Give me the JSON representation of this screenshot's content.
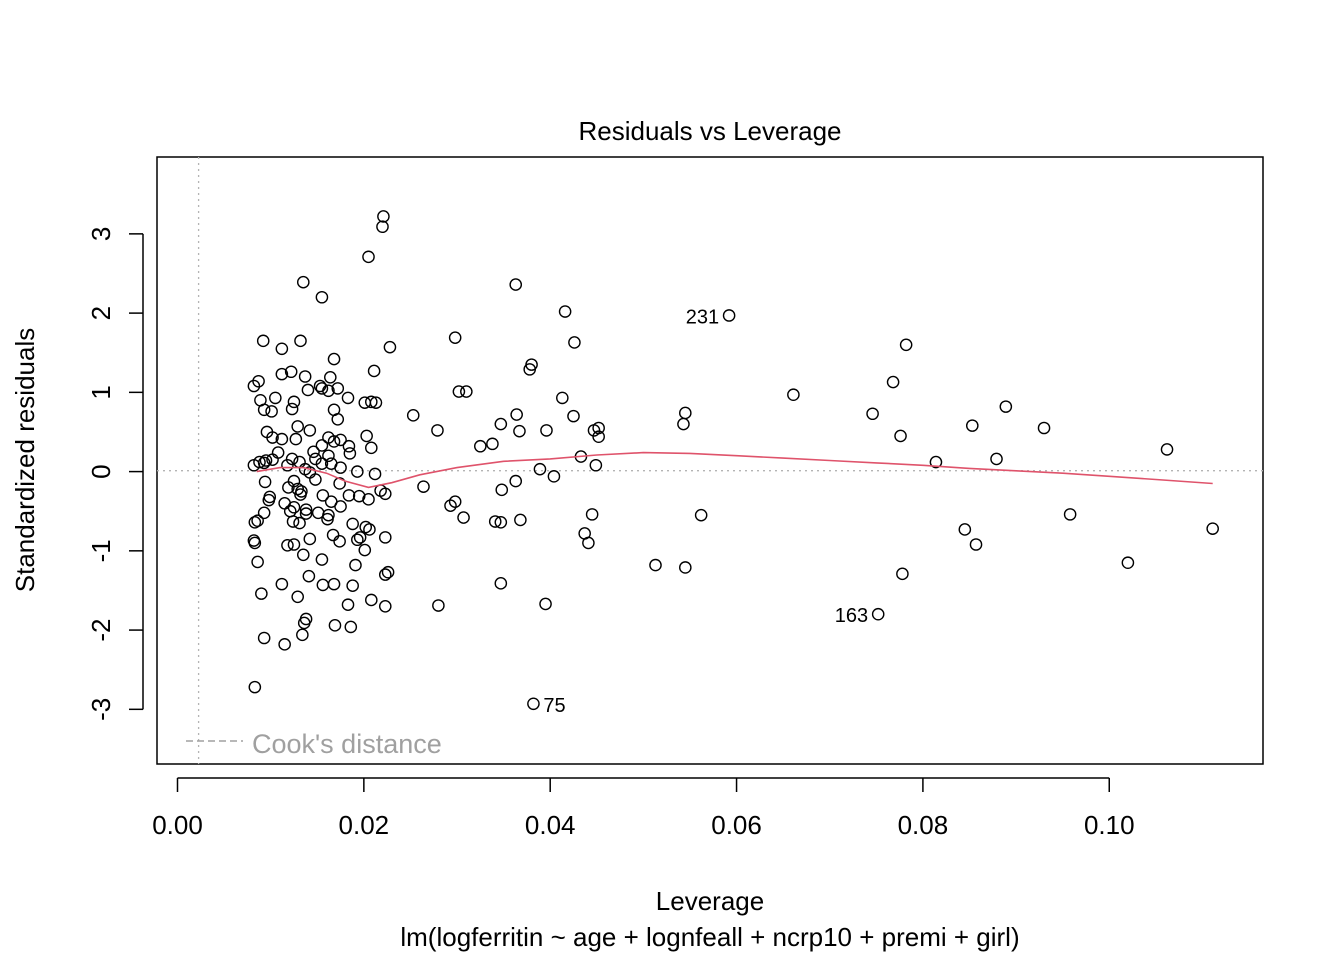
{
  "chart_data": {
    "type": "scatter",
    "title": "Residuals vs Leverage",
    "xlabel": "Leverage",
    "subtitle": "lm(logferritin ~ age + lognfeall + ncrp10 + premi + girl)",
    "ylabel": "Standardized residuals",
    "xlim": [
      -0.0022,
      0.1165
    ],
    "ylim": [
      -3.69,
      3.97
    ],
    "xticks": [
      0.0,
      0.02,
      0.04,
      0.06,
      0.08,
      0.1
    ],
    "xtick_labels": [
      "0.00",
      "0.02",
      "0.04",
      "0.06",
      "0.08",
      "0.10"
    ],
    "yticks": [
      -3,
      -2,
      -1,
      0,
      1,
      2,
      3
    ],
    "ytick_labels": [
      "-3",
      "-2",
      "-1",
      "0",
      "1",
      "2",
      "3"
    ],
    "legend": {
      "label": "Cook's distance",
      "position": "bottom-left",
      "line_style": "dashed",
      "color": "#a0a0a0"
    },
    "reference_lines": {
      "h": 0,
      "v": 0,
      "style": "dotted",
      "color": "#b4b4b4"
    },
    "smoother_color": "#df536b",
    "smoother": [
      [
        0.0085,
        0.0
      ],
      [
        0.011,
        0.05
      ],
      [
        0.0135,
        0.05
      ],
      [
        0.016,
        -0.02
      ],
      [
        0.018,
        -0.12
      ],
      [
        0.0205,
        -0.2
      ],
      [
        0.023,
        -0.14
      ],
      [
        0.026,
        -0.04
      ],
      [
        0.03,
        0.05
      ],
      [
        0.035,
        0.13
      ],
      [
        0.04,
        0.16
      ],
      [
        0.045,
        0.21
      ],
      [
        0.05,
        0.24
      ],
      [
        0.055,
        0.23
      ],
      [
        0.06,
        0.2
      ],
      [
        0.065,
        0.17
      ],
      [
        0.07,
        0.14
      ],
      [
        0.075,
        0.11
      ],
      [
        0.08,
        0.08
      ],
      [
        0.085,
        0.04
      ],
      [
        0.09,
        0.01
      ],
      [
        0.095,
        -0.02
      ],
      [
        0.1,
        -0.06
      ],
      [
        0.105,
        -0.1
      ],
      [
        0.1111,
        -0.15
      ]
    ],
    "labeled_points": [
      {
        "x": 0.0592,
        "y": 1.97,
        "label": "231",
        "side": "left"
      },
      {
        "x": 0.0752,
        "y": -1.8,
        "label": "163",
        "side": "left"
      },
      {
        "x": 0.0382,
        "y": -2.93,
        "label": "75",
        "side": "right"
      }
    ],
    "points": [
      [
        0.0221,
        3.22
      ],
      [
        0.022,
        3.09
      ],
      [
        0.0205,
        2.71
      ],
      [
        0.0135,
        2.39
      ],
      [
        0.0155,
        2.2
      ],
      [
        0.0363,
        2.36
      ],
      [
        0.0416,
        2.02
      ],
      [
        0.0592,
        1.97
      ],
      [
        0.0782,
        1.6
      ],
      [
        0.0298,
        1.69
      ],
      [
        0.0426,
        1.63
      ],
      [
        0.0228,
        1.57
      ],
      [
        0.0092,
        1.65
      ],
      [
        0.0132,
        1.65
      ],
      [
        0.0112,
        1.55
      ],
      [
        0.0168,
        1.42
      ],
      [
        0.038,
        1.35
      ],
      [
        0.0378,
        1.29
      ],
      [
        0.0211,
        1.27
      ],
      [
        0.0122,
        1.26
      ],
      [
        0.0112,
        1.23
      ],
      [
        0.0164,
        1.19
      ],
      [
        0.0137,
        1.2
      ],
      [
        0.0768,
        1.13
      ],
      [
        0.0087,
        1.14
      ],
      [
        0.0082,
        1.08
      ],
      [
        0.0302,
        1.01
      ],
      [
        0.031,
        1.01
      ],
      [
        0.0155,
        1.05
      ],
      [
        0.0162,
        1.02
      ],
      [
        0.014,
        1.03
      ],
      [
        0.0153,
        1.08
      ],
      [
        0.0172,
        1.05
      ],
      [
        0.0661,
        0.97
      ],
      [
        0.0413,
        0.93
      ],
      [
        0.0183,
        0.93
      ],
      [
        0.0089,
        0.9
      ],
      [
        0.0105,
        0.93
      ],
      [
        0.0125,
        0.88
      ],
      [
        0.0208,
        0.88
      ],
      [
        0.0213,
        0.87
      ],
      [
        0.0201,
        0.87
      ],
      [
        0.0889,
        0.82
      ],
      [
        0.0123,
        0.79
      ],
      [
        0.0101,
        0.76
      ],
      [
        0.0093,
        0.78
      ],
      [
        0.0168,
        0.78
      ],
      [
        0.0545,
        0.74
      ],
      [
        0.0364,
        0.72
      ],
      [
        0.0746,
        0.73
      ],
      [
        0.0253,
        0.71
      ],
      [
        0.0425,
        0.7
      ],
      [
        0.0172,
        0.66
      ],
      [
        0.0347,
        0.6
      ],
      [
        0.0543,
        0.6
      ],
      [
        0.0853,
        0.58
      ],
      [
        0.093,
        0.55
      ],
      [
        0.0447,
        0.52
      ],
      [
        0.0452,
        0.55
      ],
      [
        0.0396,
        0.52
      ],
      [
        0.0367,
        0.51
      ],
      [
        0.0279,
        0.52
      ],
      [
        0.0129,
        0.57
      ],
      [
        0.0142,
        0.52
      ],
      [
        0.0096,
        0.5
      ],
      [
        0.0203,
        0.45
      ],
      [
        0.0776,
        0.45
      ],
      [
        0.0452,
        0.44
      ],
      [
        0.0112,
        0.41
      ],
      [
        0.0127,
        0.41
      ],
      [
        0.0162,
        0.43
      ],
      [
        0.0175,
        0.4
      ],
      [
        0.0102,
        0.43
      ],
      [
        0.0155,
        0.33
      ],
      [
        0.0168,
        0.38
      ],
      [
        0.0325,
        0.32
      ],
      [
        0.0338,
        0.35
      ],
      [
        0.0184,
        0.32
      ],
      [
        0.0208,
        0.3
      ],
      [
        0.1062,
        0.28
      ],
      [
        0.0146,
        0.25
      ],
      [
        0.0162,
        0.2
      ],
      [
        0.0185,
        0.23
      ],
      [
        0.0433,
        0.19
      ],
      [
        0.0108,
        0.24
      ],
      [
        0.0123,
        0.16
      ],
      [
        0.0148,
        0.16
      ],
      [
        0.0095,
        0.14
      ],
      [
        0.0879,
        0.16
      ],
      [
        0.0814,
        0.12
      ],
      [
        0.0093,
        0.11
      ],
      [
        0.0088,
        0.12
      ],
      [
        0.0102,
        0.15
      ],
      [
        0.0118,
        0.08
      ],
      [
        0.0131,
        0.12
      ],
      [
        0.0155,
        0.1
      ],
      [
        0.0165,
        0.1
      ],
      [
        0.0175,
        0.05
      ],
      [
        0.0082,
        0.08
      ],
      [
        0.0449,
        0.08
      ],
      [
        0.0389,
        0.03
      ],
      [
        0.0137,
        0.03
      ],
      [
        0.0142,
        -0.01
      ],
      [
        0.0193,
        0.0
      ],
      [
        0.0212,
        -0.03
      ],
      [
        0.0404,
        -0.06
      ],
      [
        0.0363,
        -0.12
      ],
      [
        0.0094,
        -0.13
      ],
      [
        0.0125,
        -0.12
      ],
      [
        0.0148,
        -0.1
      ],
      [
        0.0174,
        -0.15
      ],
      [
        0.0119,
        -0.2
      ],
      [
        0.0129,
        -0.22
      ],
      [
        0.0133,
        -0.25
      ],
      [
        0.0218,
        -0.24
      ],
      [
        0.0223,
        -0.28
      ],
      [
        0.0264,
        -0.19
      ],
      [
        0.0348,
        -0.23
      ],
      [
        0.0184,
        -0.3
      ],
      [
        0.0195,
        -0.31
      ],
      [
        0.0205,
        -0.35
      ],
      [
        0.0099,
        -0.32
      ],
      [
        0.0098,
        -0.36
      ],
      [
        0.0132,
        -0.29
      ],
      [
        0.0156,
        -0.3
      ],
      [
        0.0165,
        -0.38
      ],
      [
        0.0298,
        -0.38
      ],
      [
        0.0293,
        -0.43
      ],
      [
        0.0115,
        -0.4
      ],
      [
        0.0125,
        -0.45
      ],
      [
        0.0138,
        -0.48
      ],
      [
        0.0151,
        -0.52
      ],
      [
        0.0162,
        -0.55
      ],
      [
        0.0175,
        -0.44
      ],
      [
        0.0093,
        -0.52
      ],
      [
        0.0121,
        -0.5
      ],
      [
        0.0138,
        -0.53
      ],
      [
        0.0307,
        -0.58
      ],
      [
        0.0341,
        -0.63
      ],
      [
        0.0347,
        -0.64
      ],
      [
        0.0368,
        -0.61
      ],
      [
        0.0445,
        -0.54
      ],
      [
        0.0562,
        -0.55
      ],
      [
        0.0958,
        -0.54
      ],
      [
        0.0086,
        -0.62
      ],
      [
        0.0083,
        -0.64
      ],
      [
        0.0124,
        -0.63
      ],
      [
        0.0131,
        -0.65
      ],
      [
        0.0161,
        -0.6
      ],
      [
        0.0188,
        -0.66
      ],
      [
        0.0202,
        -0.7
      ],
      [
        0.0206,
        -0.73
      ],
      [
        0.0437,
        -0.78
      ],
      [
        0.0845,
        -0.73
      ],
      [
        0.0167,
        -0.8
      ],
      [
        0.0196,
        -0.83
      ],
      [
        0.0223,
        -0.83
      ],
      [
        0.0193,
        -0.86
      ],
      [
        0.0441,
        -0.9
      ],
      [
        0.0857,
        -0.92
      ],
      [
        0.1111,
        -0.72
      ],
      [
        0.0082,
        -0.87
      ],
      [
        0.0083,
        -0.9
      ],
      [
        0.0118,
        -0.93
      ],
      [
        0.0125,
        -0.92
      ],
      [
        0.0142,
        -0.85
      ],
      [
        0.0174,
        -0.88
      ],
      [
        0.0201,
        -0.99
      ],
      [
        0.0135,
        -1.05
      ],
      [
        0.0155,
        -1.11
      ],
      [
        0.0086,
        -1.14
      ],
      [
        0.0191,
        -1.18
      ],
      [
        0.0513,
        -1.18
      ],
      [
        0.0545,
        -1.21
      ],
      [
        0.102,
        -1.15
      ],
      [
        0.0778,
        -1.29
      ],
      [
        0.0226,
        -1.27
      ],
      [
        0.0223,
        -1.3
      ],
      [
        0.0141,
        -1.32
      ],
      [
        0.0112,
        -1.42
      ],
      [
        0.0156,
        -1.43
      ],
      [
        0.0168,
        -1.42
      ],
      [
        0.0188,
        -1.44
      ],
      [
        0.0347,
        -1.41
      ],
      [
        0.009,
        -1.54
      ],
      [
        0.0129,
        -1.58
      ],
      [
        0.0208,
        -1.62
      ],
      [
        0.0223,
        -1.7
      ],
      [
        0.0183,
        -1.68
      ],
      [
        0.028,
        -1.69
      ],
      [
        0.0395,
        -1.67
      ],
      [
        0.0752,
        -1.8
      ],
      [
        0.0138,
        -1.86
      ],
      [
        0.0136,
        -1.91
      ],
      [
        0.0169,
        -1.94
      ],
      [
        0.0186,
        -1.96
      ],
      [
        0.0134,
        -2.06
      ],
      [
        0.0093,
        -2.1
      ],
      [
        0.0115,
        -2.18
      ],
      [
        0.0083,
        -2.72
      ],
      [
        0.0382,
        -2.93
      ]
    ]
  }
}
